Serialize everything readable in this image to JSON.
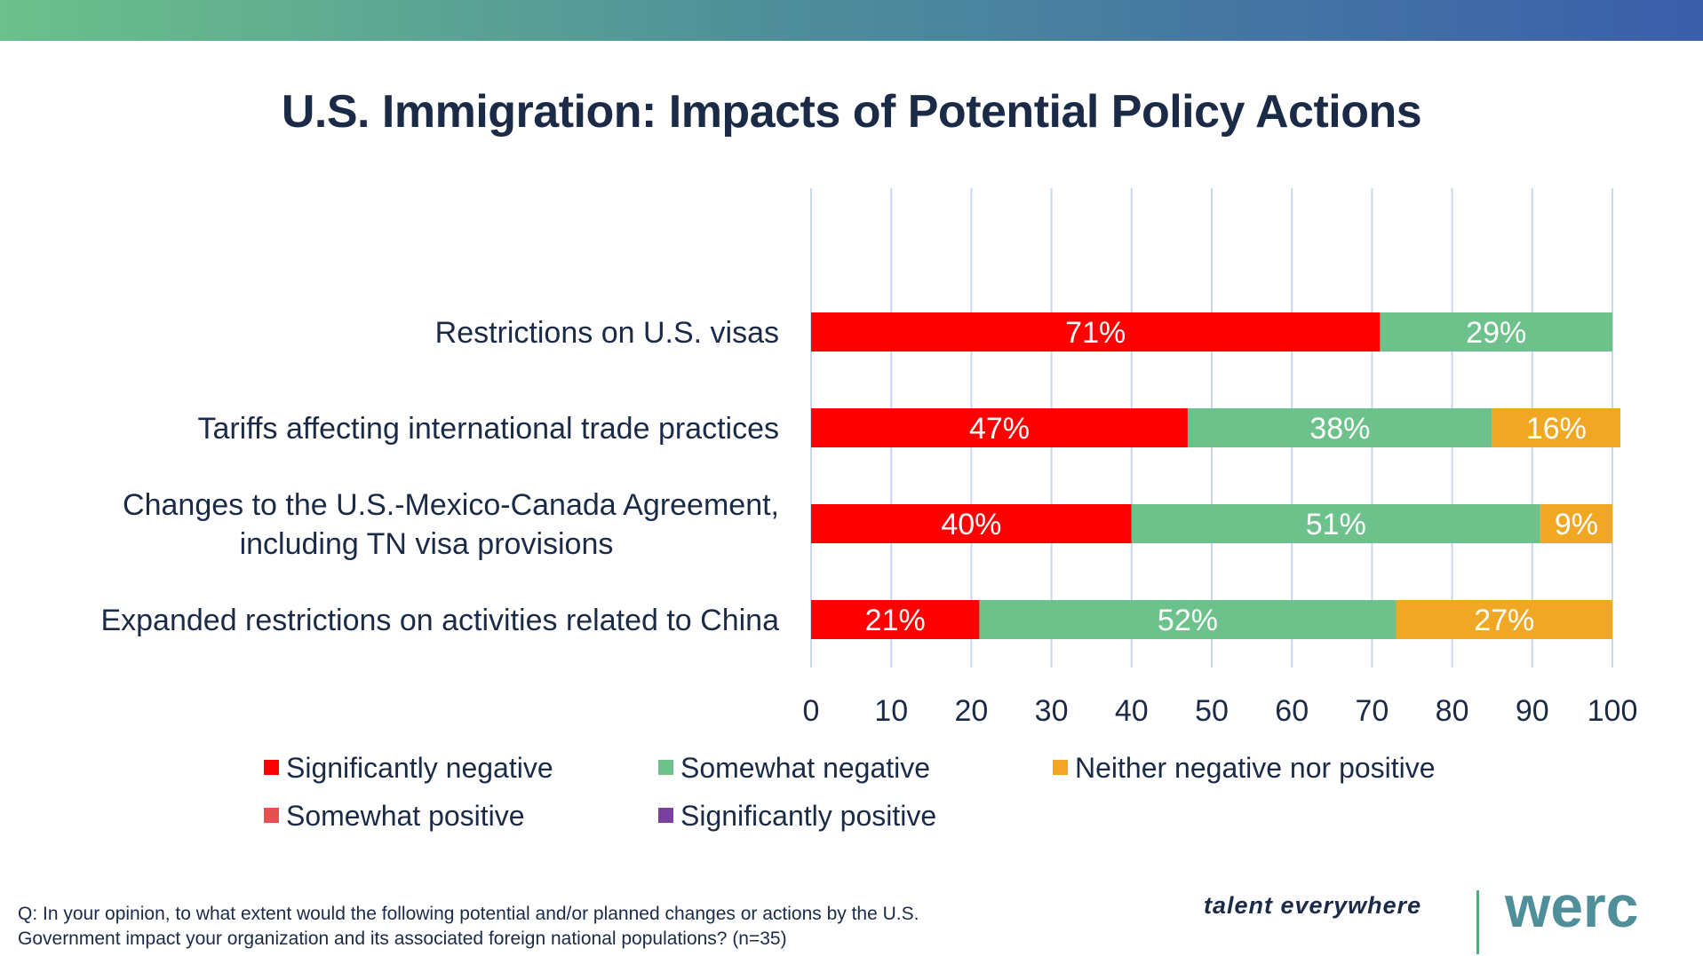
{
  "page": {
    "title": "U.S. Immigration: Impacts of Potential Policy Actions",
    "question": "Q: In your opinion, to what extent would the following potential and/or planned changes or actions by the U.S. Government impact your organization and its associated foreign national populations? (n=35)",
    "tagline": "talent everywhere",
    "logo_text": "werc"
  },
  "colors": {
    "significantly_negative": "#ff0000",
    "somewhat_negative": "#6cc28a",
    "neither": "#f0a824",
    "somewhat_positive": "#e8504f",
    "significantly_positive": "#7b3fa0",
    "grid": "#c8d9ee",
    "text": "#1b2a47",
    "bar_label": "#ffffff"
  },
  "chart_data": {
    "type": "bar",
    "orientation": "horizontal",
    "stacked": true,
    "categories": [
      "Restrictions on U.S. visas",
      "Tariffs affecting international trade practices",
      "Changes to the U.S.-Mexico-Canada Agreement, including TN visa provisions",
      "Expanded restrictions on activities related to China"
    ],
    "category_lines": [
      [
        "Restrictions on U.S. visas"
      ],
      [
        "Tariffs affecting international trade practices"
      ],
      [
        "Changes to the U.S.-Mexico-Canada Agreement,",
        "including TN visa provisions"
      ],
      [
        "Expanded restrictions on activities related to China"
      ]
    ],
    "series": [
      {
        "name": "Significantly negative",
        "values": [
          71,
          47,
          40,
          21
        ],
        "labels": [
          "71%",
          "47%",
          "40%",
          "21%"
        ]
      },
      {
        "name": "Somewhat negative",
        "values": [
          29,
          38,
          51,
          52
        ],
        "labels": [
          "29%",
          "38%",
          "51%",
          "52%"
        ]
      },
      {
        "name": "Neither negative nor positive",
        "values": [
          0,
          16,
          9,
          27
        ],
        "labels": [
          "",
          "16%",
          "9%",
          "27%"
        ]
      },
      {
        "name": "Somewhat positive",
        "values": [
          0,
          0,
          0,
          0
        ],
        "labels": [
          "",
          "",
          "",
          ""
        ]
      },
      {
        "name": "Significantly positive",
        "values": [
          0,
          0,
          0,
          0
        ],
        "labels": [
          "",
          "",
          "",
          ""
        ]
      }
    ],
    "xlim": [
      0,
      100
    ],
    "xticks": [
      "0",
      "10",
      "20",
      "30",
      "40",
      "50",
      "60",
      "70",
      "80",
      "90",
      "100"
    ],
    "grid": true,
    "legend_position": "bottom"
  }
}
